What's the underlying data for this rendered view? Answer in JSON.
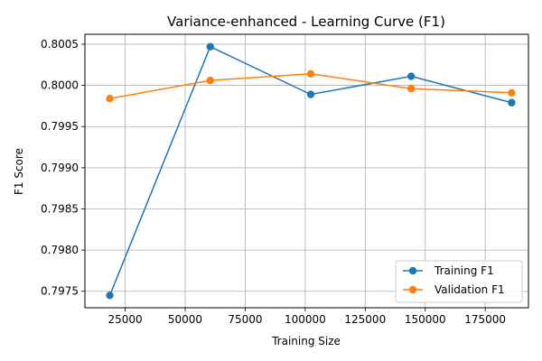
{
  "chart_data": {
    "type": "line",
    "title": "Variance-enhanced - Learning Curve (F1)",
    "xlabel": "Training Size",
    "ylabel": "F1 Score",
    "x": [
      18600,
      60450,
      102300,
      144150,
      186000
    ],
    "series": [
      {
        "name": "Training F1",
        "color": "#1f77b4",
        "values": [
          0.79745,
          0.80047,
          0.79989,
          0.80011,
          0.79979
        ]
      },
      {
        "name": "Validation F1",
        "color": "#ff7f0e",
        "values": [
          0.79984,
          0.80006,
          0.80014,
          0.79996,
          0.79991
        ]
      }
    ],
    "xlim": [
      8230,
      193000
    ],
    "ylim": [
      0.7973,
      0.80062
    ],
    "xticks": [
      25000,
      50000,
      75000,
      100000,
      125000,
      150000,
      175000
    ],
    "xtick_labels": [
      "25000",
      "50000",
      "75000",
      "100000",
      "125000",
      "150000",
      "175000"
    ],
    "yticks": [
      0.7975,
      0.798,
      0.7985,
      0.799,
      0.7995,
      0.8,
      0.8005
    ],
    "ytick_labels": [
      "0.7975",
      "0.7980",
      "0.7985",
      "0.7990",
      "0.7995",
      "0.8000",
      "0.8005"
    ],
    "grid": true,
    "legend_position": "lower-right"
  }
}
